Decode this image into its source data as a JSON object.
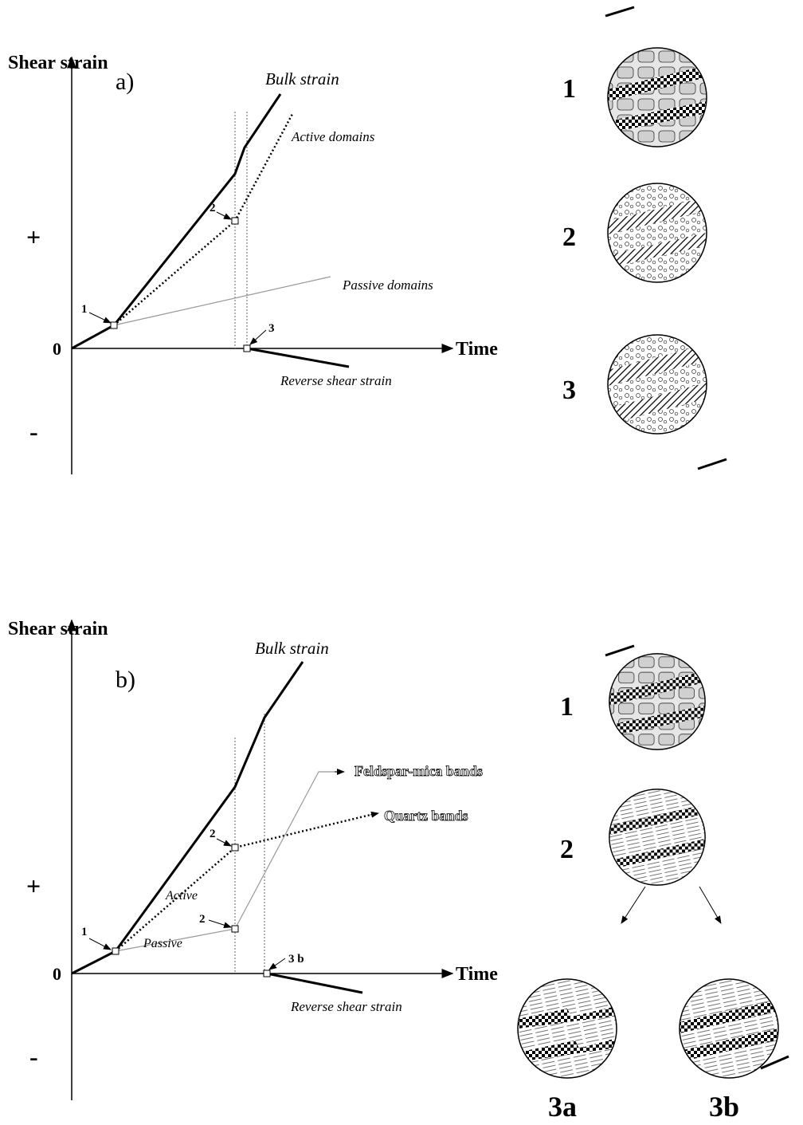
{
  "panels": [
    {
      "label": "a)",
      "y_axis_label": "Shear strain",
      "x_axis_label": "Time",
      "axis_signs": [
        "+",
        "0",
        "-"
      ],
      "curves": [
        "Bulk strain",
        "Active domains",
        "Passive domains",
        "Reverse shear strain"
      ],
      "points": [
        "1",
        "2",
        "3"
      ],
      "microstructures": [
        "1",
        "2",
        "3"
      ]
    },
    {
      "label": "b)",
      "y_axis_label": "Shear strain",
      "x_axis_label": "Time",
      "axis_signs": [
        "+",
        "0",
        "-"
      ],
      "curves": [
        "Bulk strain",
        "Feldspar-mica bands",
        "Quartz bands",
        "Active",
        "Passive",
        "Reverse shear strain"
      ],
      "points": [
        "1",
        "2",
        "2",
        "3 b"
      ],
      "microstructures": [
        "1",
        "2",
        "3a",
        "3b"
      ]
    }
  ]
}
